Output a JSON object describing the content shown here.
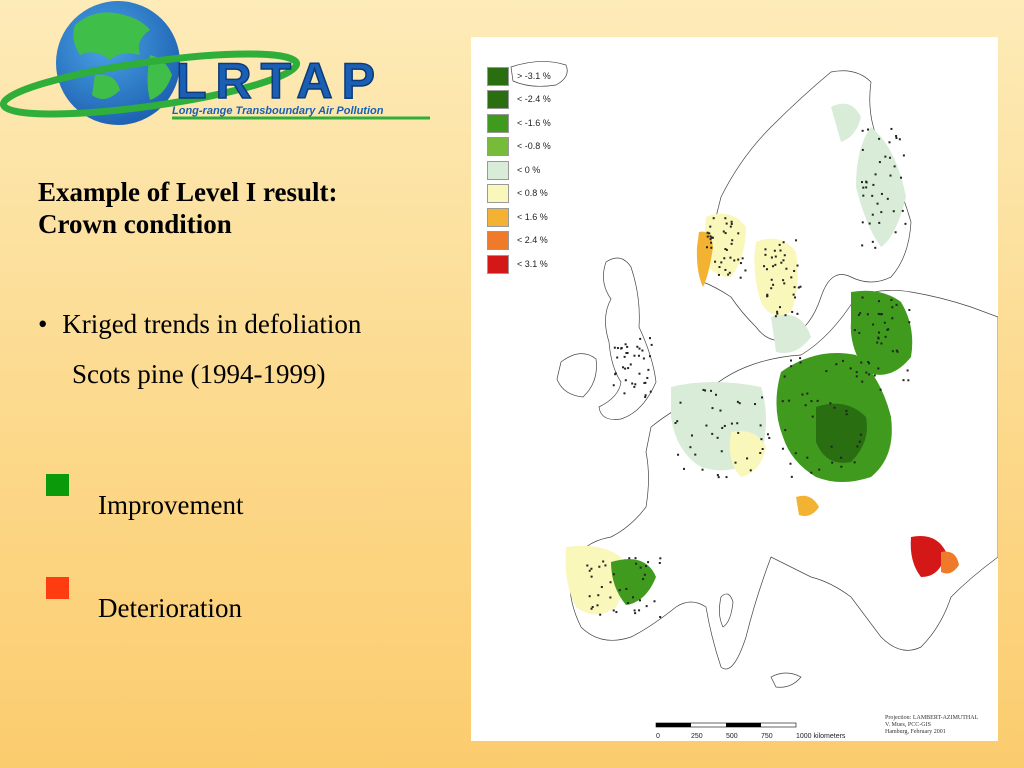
{
  "logo": {
    "title": "LRTAP",
    "subtitle": "Long-range Transboundary Air Pollution"
  },
  "heading": {
    "line1": "Example of Level I result:",
    "line2": "Crown condition"
  },
  "bullet": {
    "marker": "•",
    "text": "Kriged trends in defoliation",
    "sub": "Scots pine (1994-1999)"
  },
  "key": {
    "improvement": {
      "label": "Improvement",
      "color": "#0a9a0a"
    },
    "deterioration": {
      "label": "Deterioration",
      "color": "#ff3c0f"
    }
  },
  "map": {
    "legend": [
      {
        "label": "> -3.1 %",
        "color": "#2a6e12"
      },
      {
        "label": "< -2.4 %",
        "color": "#2a6e12"
      },
      {
        "label": "< -1.6 %",
        "color": "#3f9a1e"
      },
      {
        "label": "< -0.8 %",
        "color": "#77bb3a"
      },
      {
        "label": "< 0 %",
        "color": "#d8ecd8"
      },
      {
        "label": "< 0.8 %",
        "color": "#f9f7b9"
      },
      {
        "label": "< 1.6 %",
        "color": "#f4b233"
      },
      {
        "label": "< 2.4 %",
        "color": "#ef7b2a"
      },
      {
        "label": "< 3.1 %",
        "color": "#d41818"
      }
    ],
    "scale": {
      "ticks": [
        "0",
        "250",
        "500",
        "750",
        "1000 kilometers"
      ]
    },
    "credits": [
      "Projection: LAMBERT-AZIMUTHAL",
      "V. Mues, PCC-GIS",
      "Hamburg, February 2001"
    ]
  }
}
